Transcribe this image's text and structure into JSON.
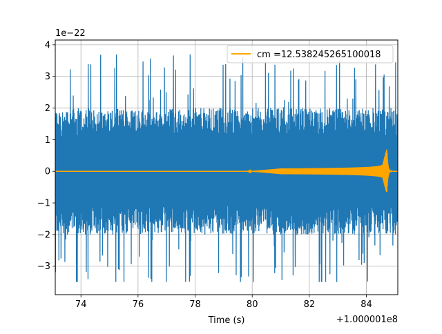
{
  "chart_data": {
    "type": "line",
    "title": "",
    "xlabel": "Time (s)",
    "ylabel": "",
    "x_offset_label": "+1.000001e8",
    "y_scale_label": "1e−22",
    "xlim": [
      73.1,
      85.1
    ],
    "ylim": [
      -3.9,
      4.15
    ],
    "x_ticks": [
      74,
      76,
      78,
      80,
      82,
      84
    ],
    "y_ticks": [
      -3,
      -2,
      -1,
      0,
      1,
      2,
      3,
      4
    ],
    "y_tick_labels": [
      "−3",
      "−2",
      "−1",
      "0",
      "1",
      "2",
      "3",
      "4"
    ],
    "grid": true,
    "legend_position": "upper-right",
    "series": [
      {
        "name": "",
        "color": "#1f77b4",
        "description_kind": "noise strain",
        "x_range": [
          73.1,
          85.1
        ],
        "envelope_upper": 2.0,
        "envelope_lower": -2.0,
        "peak_max": 3.75,
        "peak_min": -3.5
      },
      {
        "name": "cm =12.538245265100018",
        "color": "#ffa500",
        "x_range": [
          73.1,
          85.1
        ],
        "chirp_start": 79.8,
        "merger_time": 84.72,
        "peak_max": 0.7,
        "peak_min": -0.65
      }
    ]
  }
}
